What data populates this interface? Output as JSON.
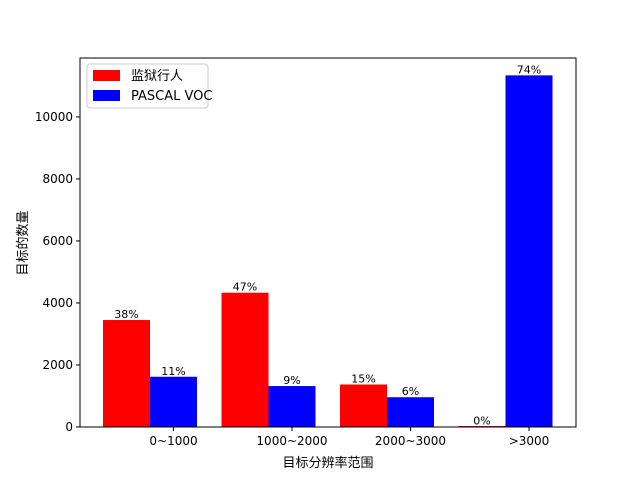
{
  "chart_data": {
    "type": "bar",
    "categories": [
      "0~1000",
      "1000~2000",
      "2000~3000",
      ">3000"
    ],
    "series": [
      {
        "name": "监狱行人",
        "color": "#ff0000",
        "values": [
          3450,
          4330,
          1370,
          20
        ],
        "labels": [
          "38%",
          "47%",
          "15%",
          "0%"
        ]
      },
      {
        "name": "PASCAL VOC",
        "color": "#0000ff",
        "values": [
          1620,
          1320,
          960,
          11340
        ],
        "labels": [
          "11%",
          "9%",
          "6%",
          "74%"
        ]
      }
    ],
    "xlabel": "目标分辨率范围",
    "ylabel": "目标的数量",
    "ylim": [
      0,
      11900
    ],
    "yticks": [
      0,
      2000,
      4000,
      6000,
      8000,
      10000
    ],
    "grid": false,
    "legend": "upper-left"
  }
}
